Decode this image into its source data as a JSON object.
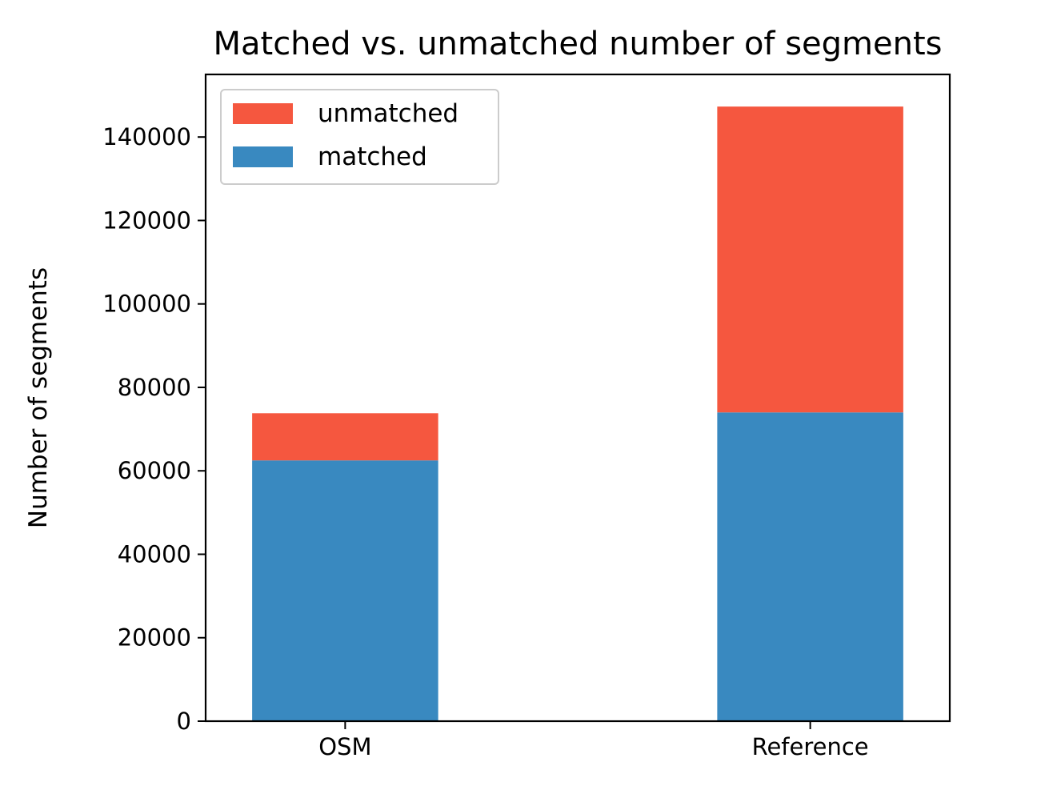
{
  "chart_data": {
    "type": "bar",
    "stacked": true,
    "title": "Matched vs. unmatched number of segments",
    "xlabel": "",
    "ylabel": "Number of segments",
    "categories": [
      "OSM",
      "Reference"
    ],
    "series": [
      {
        "name": "matched",
        "values": [
          62500,
          74000
        ],
        "color": "#3989c0"
      },
      {
        "name": "unmatched",
        "values": [
          11300,
          73300
        ],
        "color": "#f5573f"
      }
    ],
    "ylim": [
      0,
      155000
    ],
    "yticks": [
      0,
      20000,
      40000,
      60000,
      80000,
      100000,
      120000,
      140000
    ],
    "ytick_labels": [
      "0",
      "20000",
      "40000",
      "60000",
      "80000",
      "100000",
      "120000",
      "140000"
    ],
    "grid": false,
    "legend": {
      "placement": "top-left",
      "entries": [
        "unmatched",
        "matched"
      ]
    }
  }
}
